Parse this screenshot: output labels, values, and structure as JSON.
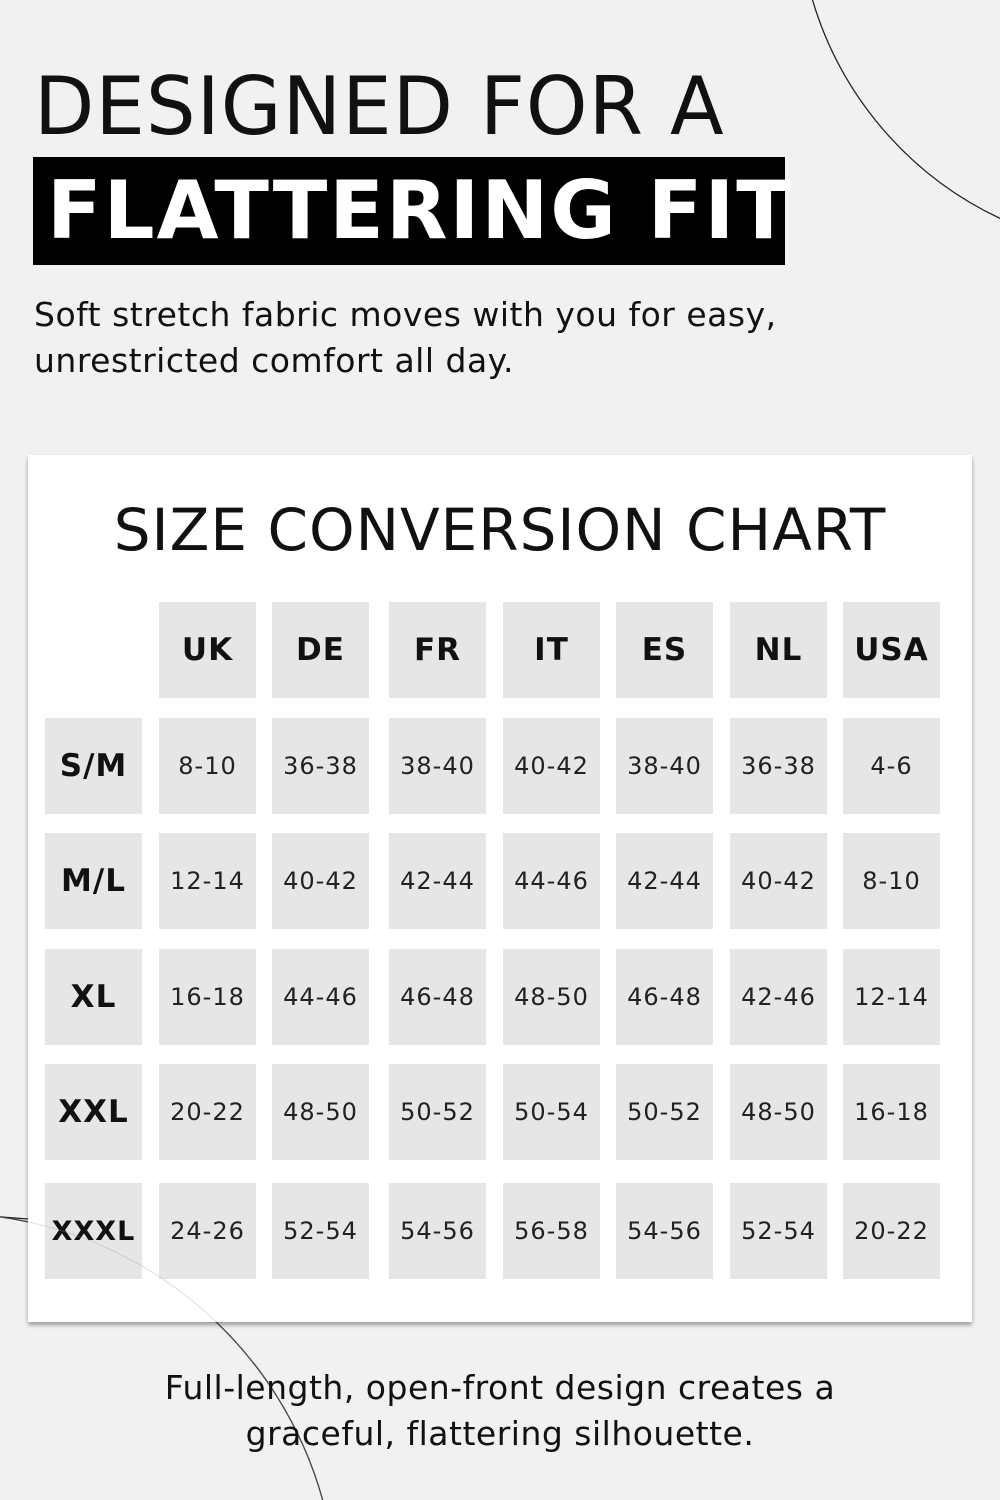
{
  "headline": "DESIGNED FOR A",
  "banner": "FLATTERING FIT",
  "intro": "Soft stretch fabric moves with you for easy, unrestricted comfort all day.",
  "size_chart": {
    "title": "SIZE CONVERSION CHART",
    "columns": [
      "UK",
      "DE",
      "FR",
      "IT",
      "ES",
      "NL",
      "USA"
    ],
    "rows": [
      {
        "size": "S/M",
        "values": [
          "8-10",
          "36-38",
          "38-40",
          "40-42",
          "38-40",
          "36-38",
          "4-6"
        ]
      },
      {
        "size": "M/L",
        "values": [
          "12-14",
          "40-42",
          "42-44",
          "44-46",
          "42-44",
          "40-42",
          "8-10"
        ]
      },
      {
        "size": "XL",
        "values": [
          "16-18",
          "44-46",
          "46-48",
          "48-50",
          "46-48",
          "42-46",
          "12-14"
        ]
      },
      {
        "size": "XXL",
        "values": [
          "20-22",
          "48-50",
          "50-52",
          "50-54",
          "50-52",
          "48-50",
          "16-18"
        ]
      },
      {
        "size": "XXXL",
        "values": [
          "24-26",
          "52-54",
          "54-56",
          "56-58",
          "54-56",
          "52-54",
          "20-22"
        ]
      }
    ]
  },
  "outro": "Full-length, open-front design creates a graceful, flattering silhouette.",
  "colors": {
    "background": "#f1f1f1",
    "banner": "#000000",
    "cell": "#e6e6e7",
    "card": "#ffffff"
  }
}
